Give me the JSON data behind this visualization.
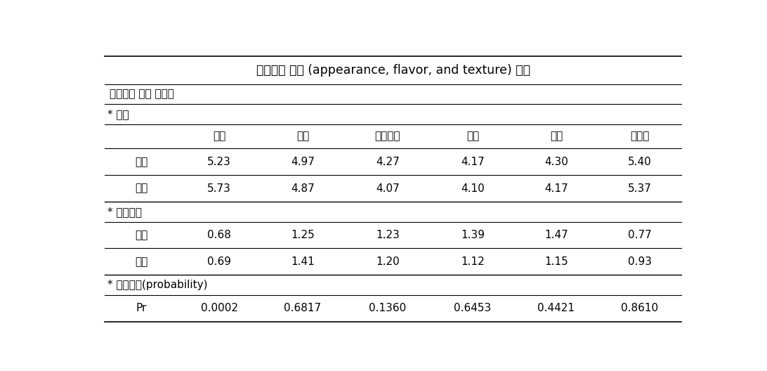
{
  "title": "관능품질 강도 (appearance, flavor, and texture) 분석",
  "subtitle": "특성강도 요약 테이블",
  "columns": [
    "",
    "색상",
    "기포",
    "시큼한향",
    "이취",
    "신맛",
    "씹힘성"
  ],
  "section_mean": "* 평균",
  "section_std": "* 표준편차",
  "section_prob": "* 유의확률(probability)",
  "mean_rows": [
    [
      "기본",
      "5.23",
      "4.97",
      "4.27",
      "4.17",
      "4.30",
      "5.40"
    ],
    [
      "미강",
      "5.73",
      "4.87",
      "4.07",
      "4.10",
      "4.17",
      "5.37"
    ]
  ],
  "std_rows": [
    [
      "기본",
      "0.68",
      "1.25",
      "1.23",
      "1.39",
      "1.47",
      "0.77"
    ],
    [
      "미강",
      "0.69",
      "1.41",
      "1.20",
      "1.12",
      "1.15",
      "0.93"
    ]
  ],
  "prob_rows": [
    [
      "Pr",
      "0.0002",
      "0.6817",
      "0.1360",
      "0.6453",
      "0.4421",
      "0.8610"
    ]
  ],
  "bg_color": "#ffffff",
  "text_color": "#000000",
  "line_color": "#000000",
  "title_fontsize": 12.5,
  "subtitle_fontsize": 11,
  "cell_fontsize": 11,
  "section_fontsize": 11
}
